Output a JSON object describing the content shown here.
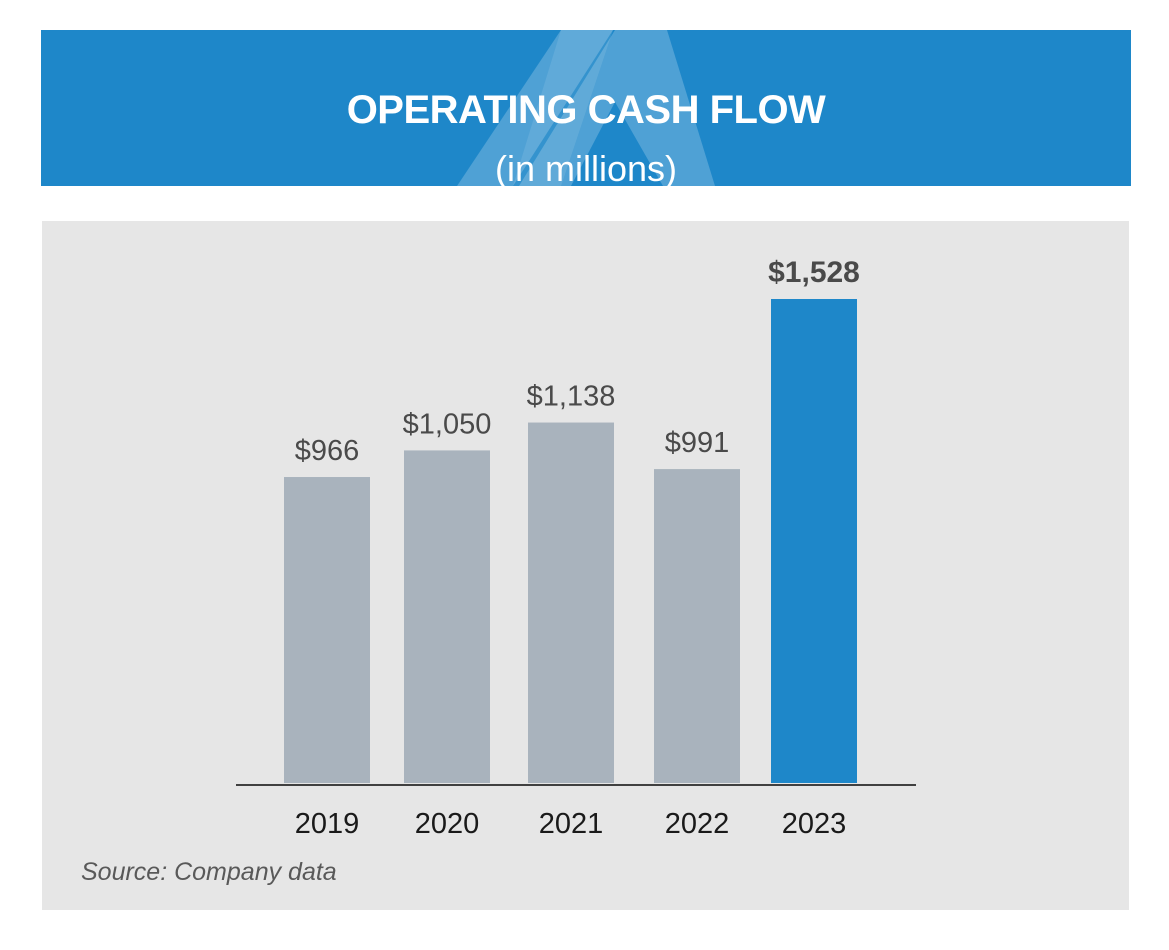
{
  "chart_data": {
    "type": "bar",
    "title": "OPERATING CASH FLOW",
    "subtitle": "(in millions)",
    "categories": [
      "2019",
      "2020",
      "2021",
      "2022",
      "2023"
    ],
    "values": [
      966,
      1050,
      1138,
      991,
      1528
    ],
    "value_labels": [
      "$966",
      "$1,050",
      "$1,138",
      "$991",
      "$1,528"
    ],
    "highlight_index": 4,
    "ylim": [
      0,
      1528
    ],
    "xlabel": "",
    "ylabel": "",
    "grid": false,
    "colors": {
      "default_bar": "#a9b3bd",
      "highlight_bar": "#1e87c9",
      "label": "#4a4a4a",
      "highlight_label": "#4a4a4a",
      "axis": "#404040"
    }
  },
  "source": "Source: Company data",
  "colors": {
    "header_bg": "#1e87c9",
    "panel_bg": "#e6e6e6"
  }
}
